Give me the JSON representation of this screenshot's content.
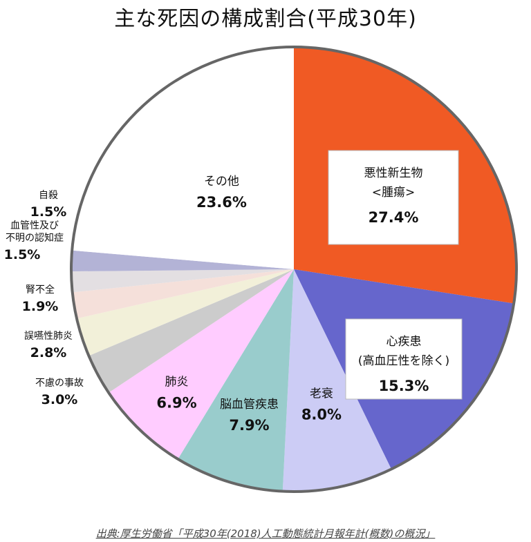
{
  "chart_data": {
    "type": "pie",
    "title": "主な死因の構成割合(平成30年)",
    "source": "出典:厚生労働省「平成30年(2018)人工動態統計月報年計(概数)の概況」",
    "slices": [
      {
        "name": "悪性新生物",
        "name2": "<腫瘍>",
        "value": 27.4,
        "label": "27.4%",
        "color": "#f05a24",
        "style": "box"
      },
      {
        "name": "心疾患",
        "name2": "(高血圧性を除く)",
        "value": 15.3,
        "label": "15.3%",
        "color": "#6666cc",
        "style": "box"
      },
      {
        "name": "老衰",
        "value": 8.0,
        "label": "8.0%",
        "color": "#ccccf5",
        "style": "inside"
      },
      {
        "name": "脳血管疾患",
        "value": 7.9,
        "label": "7.9%",
        "color": "#99cccc",
        "style": "inside"
      },
      {
        "name": "肺炎",
        "value": 6.9,
        "label": "6.9%",
        "color": "#ffccff",
        "style": "inside"
      },
      {
        "name": "不慮の事故",
        "value": 3.0,
        "label": "3.0%",
        "color": "#cccccc",
        "style": "side"
      },
      {
        "name": "誤嚥性肺炎",
        "value": 2.8,
        "label": "2.8%",
        "color": "#f2f0d9",
        "style": "side"
      },
      {
        "name": "腎不全",
        "value": 1.9,
        "label": "1.9%",
        "color": "#f5e0da",
        "style": "side"
      },
      {
        "name": "血管性及び",
        "name2": "不明の認知症",
        "value": 1.5,
        "label": "1.5%",
        "color": "#e3dfe2",
        "style": "side"
      },
      {
        "name": "自殺",
        "value": 1.5,
        "label": "1.5%",
        "color": "#b3b3d6",
        "style": "side"
      },
      {
        "name": "その他",
        "value": 23.6,
        "label": "23.6%",
        "color": "#ffffff",
        "style": "inside"
      }
    ]
  }
}
